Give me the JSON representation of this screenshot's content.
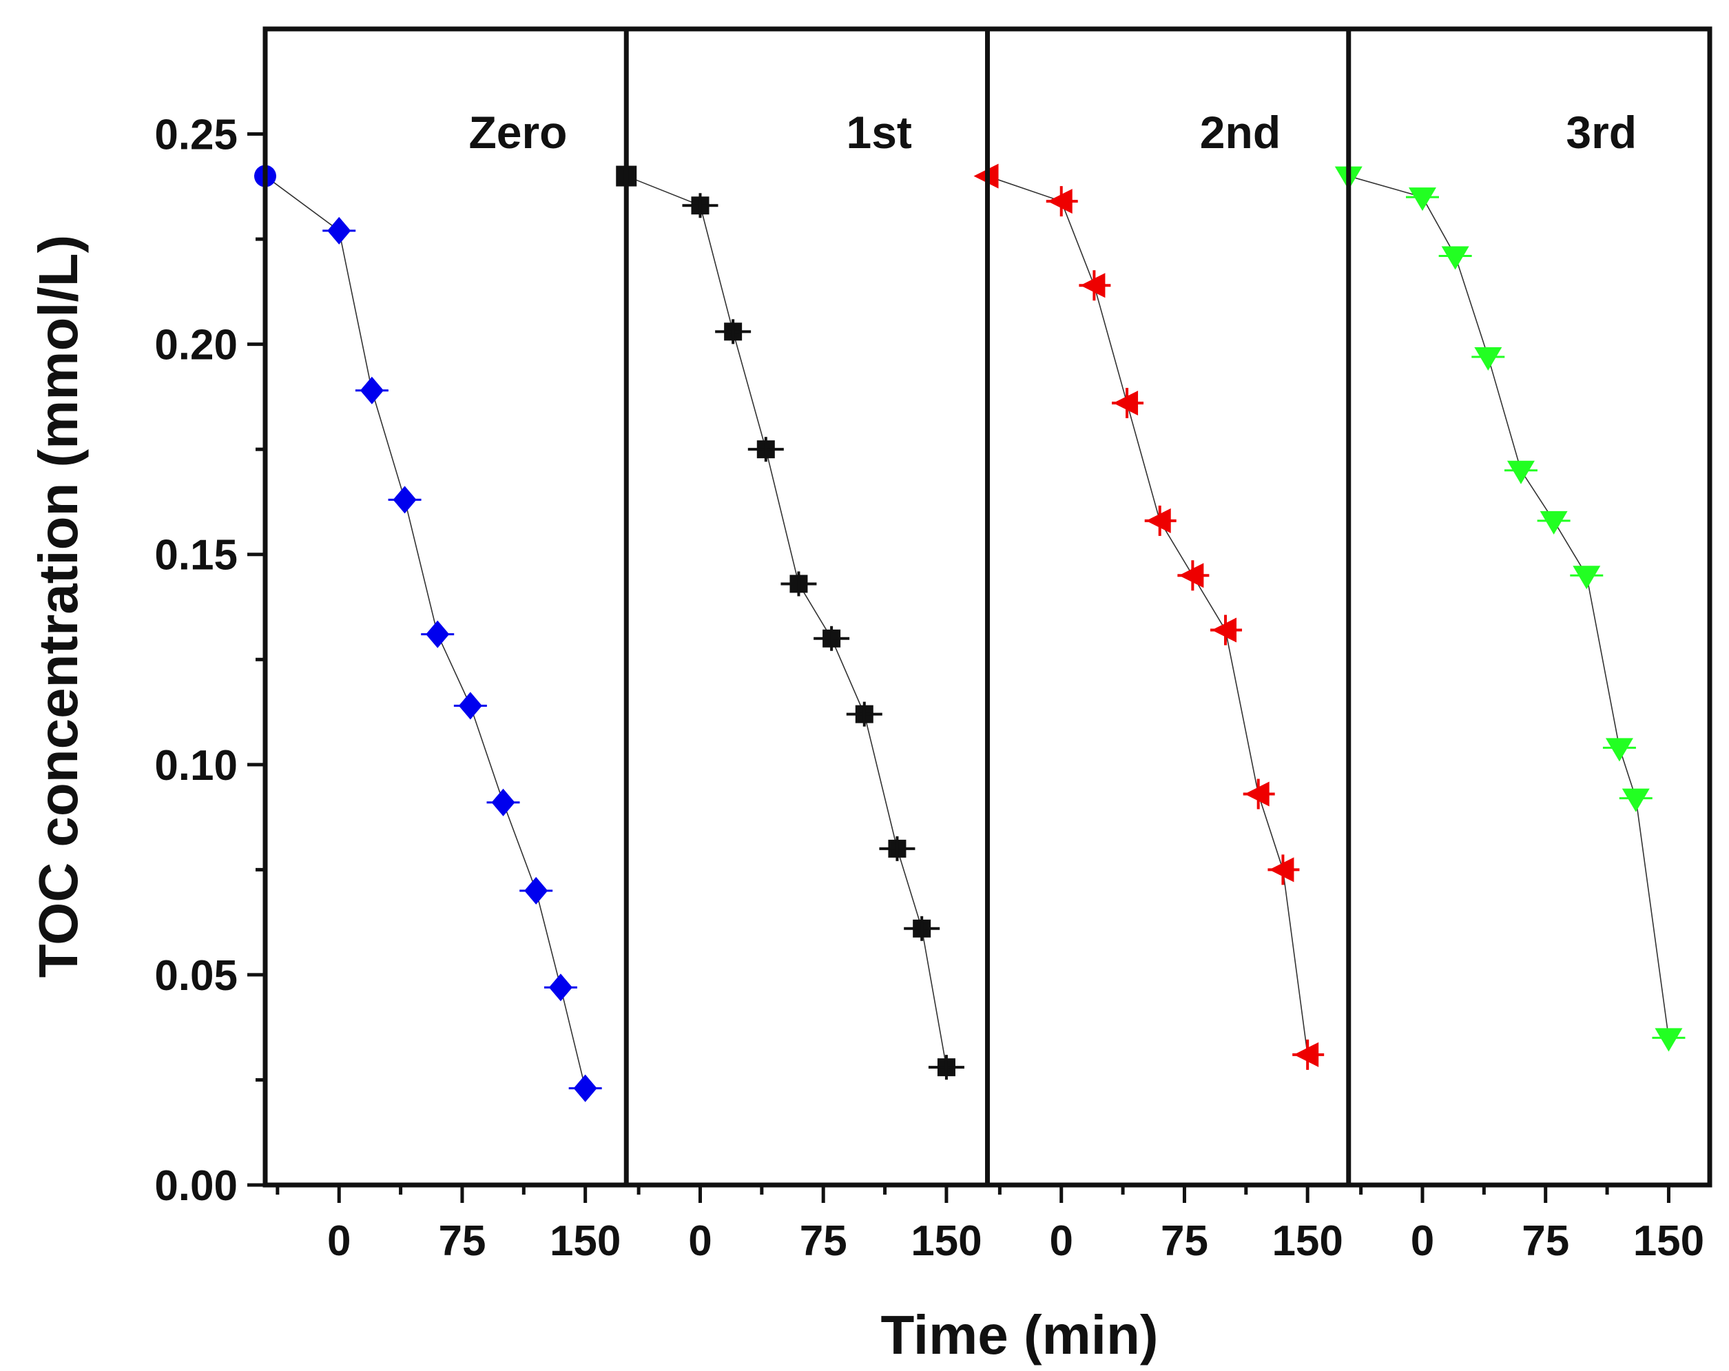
{
  "chart_data": {
    "type": "scatter",
    "title": "",
    "xlabel": "Time (min)",
    "ylabel": "TOC concentration (mmol/L)",
    "ylim": [
      0.0,
      0.275
    ],
    "xlim": [
      -45,
      175
    ],
    "yticks": [
      "0.00",
      "0.05",
      "0.10",
      "0.15",
      "0.20",
      "0.25"
    ],
    "xticks": [
      "0",
      "75",
      "150"
    ],
    "panels": [
      {
        "name": "Zero",
        "color": "#0000ee",
        "marker": "diamond",
        "x": [
          -45,
          0,
          20,
          40,
          60,
          80,
          100,
          120,
          135,
          150
        ],
        "y": [
          0.24,
          0.227,
          0.189,
          0.163,
          0.131,
          0.114,
          0.091,
          0.07,
          0.047,
          0.023
        ]
      },
      {
        "name": "1st",
        "color": "#111111",
        "marker": "square",
        "x": [
          -45,
          0,
          20,
          40,
          60,
          80,
          100,
          120,
          135,
          150
        ],
        "y": [
          0.24,
          0.233,
          0.203,
          0.175,
          0.143,
          0.13,
          0.112,
          0.08,
          0.061,
          0.028
        ]
      },
      {
        "name": "2nd",
        "color": "#ee0000",
        "marker": "triangle-left",
        "x": [
          -45,
          0,
          20,
          40,
          60,
          80,
          100,
          120,
          135,
          150
        ],
        "y": [
          0.24,
          0.234,
          0.214,
          0.186,
          0.158,
          0.145,
          0.132,
          0.093,
          0.075,
          0.031
        ]
      },
      {
        "name": "3rd",
        "color": "#22ff22",
        "marker": "triangle-down",
        "x": [
          -45,
          0,
          20,
          40,
          60,
          80,
          100,
          120,
          130,
          150
        ],
        "y": [
          0.24,
          0.235,
          0.221,
          0.197,
          0.17,
          0.158,
          0.145,
          0.104,
          0.092,
          0.035
        ]
      }
    ]
  }
}
